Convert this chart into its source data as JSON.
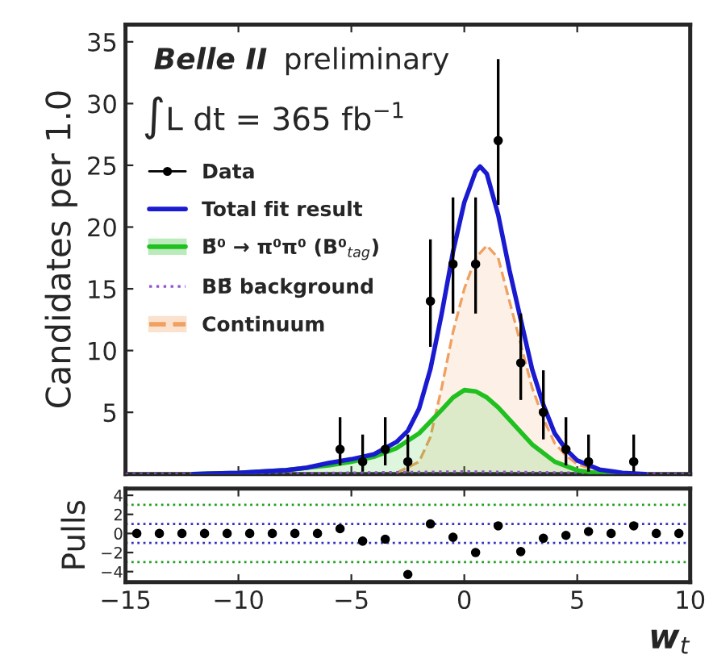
{
  "chart_data": [
    {
      "type": "line",
      "ylabel": "Candidates per 1.0",
      "xlim": [
        -15,
        10
      ],
      "xticks": [
        -15,
        -10,
        -5,
        0,
        5,
        10
      ],
      "ylim": [
        0,
        36.4
      ],
      "yticks": [
        5,
        10,
        15,
        20,
        25,
        30,
        35
      ],
      "tick_labels": "y",
      "grid": false,
      "legend": "left",
      "annotations": [
        "Belle II",
        "preliminary",
        "∫L dt = 365 fb$^{−1}$"
      ],
      "series": [
        {
          "name": "Continuum",
          "type": "area",
          "color": "#f0a060",
          "line_style": "dashed",
          "x": [
            -3,
            -2,
            -1.5,
            -1,
            -0.5,
            0,
            0.5,
            1,
            1.5,
            2,
            2.5,
            3,
            3.5,
            4,
            4.5,
            5,
            6,
            7
          ],
          "values": [
            0.1,
            1,
            3,
            7,
            11.5,
            15,
            17.5,
            18.5,
            17.5,
            14,
            10.5,
            7,
            4.5,
            2.5,
            1.5,
            0.8,
            0.2,
            0
          ]
        },
        {
          "name": "BB̄ background",
          "type": "line",
          "color": "#9050d0",
          "line_style": "dotted",
          "x": [
            -15,
            -10,
            -5,
            0,
            5,
            10
          ],
          "values": [
            0,
            0,
            0.1,
            0.2,
            0.1,
            0
          ]
        },
        {
          "name": "B̄⁰ → π⁰π⁰ (B⁰$_{tag}$)",
          "type": "area",
          "color": "#20c020",
          "line_style": "solid",
          "x": [
            -12,
            -10,
            -8,
            -7,
            -6,
            -5,
            -4,
            -3,
            -2,
            -1,
            -0.5,
            0,
            0.5,
            1,
            1.5,
            2,
            2.5,
            3,
            4,
            5,
            6,
            7
          ],
          "values": [
            0,
            0.1,
            0.3,
            0.5,
            0.7,
            1.0,
            1.4,
            2.1,
            3.3,
            5.2,
            6.2,
            6.8,
            6.7,
            6.2,
            5.4,
            4.4,
            3.4,
            2.4,
            1.0,
            0.3,
            0.05,
            0
          ]
        },
        {
          "name": "Total fit result",
          "type": "line",
          "color": "#1a1ad0",
          "line_style": "solid",
          "x": [
            -12,
            -10,
            -8,
            -7,
            -6,
            -5,
            -4,
            -3,
            -2.5,
            -2,
            -1.5,
            -1,
            -0.5,
            0,
            0.5,
            0.7,
            1,
            1.5,
            2,
            2.5,
            3,
            3.5,
            4,
            4.5,
            5,
            6,
            7,
            8
          ],
          "values": [
            0,
            0.1,
            0.3,
            0.5,
            0.9,
            1.2,
            1.6,
            2.6,
            3.5,
            5.3,
            8.5,
            13,
            18,
            22,
            24.5,
            24.9,
            24.3,
            21,
            16.5,
            12.5,
            8.5,
            5.6,
            3.3,
            2,
            1.1,
            0.35,
            0.1,
            0
          ]
        },
        {
          "name": "Data",
          "type": "scatter",
          "color": "#000000",
          "marker": "circle",
          "x": [
            -5.5,
            -4.5,
            -3.5,
            -2.5,
            -1.5,
            -0.5,
            0.5,
            1.5,
            2.5,
            3.5,
            4.5,
            5.5,
            7.5
          ],
          "values": [
            2,
            1,
            2,
            1,
            14,
            17,
            17,
            27,
            9,
            5,
            2,
            1,
            1
          ],
          "errors": [
            [
              0.7,
              4.6
            ],
            [
              0.2,
              3.2
            ],
            [
              0.7,
              4.6
            ],
            [
              0.2,
              3.2
            ],
            [
              10.3,
              19
            ],
            [
              13,
              22.4
            ],
            [
              13,
              22.4
            ],
            [
              21.8,
              33.6
            ],
            [
              6,
              13
            ],
            [
              2.8,
              8.4
            ],
            [
              0.7,
              4.6
            ],
            [
              0.2,
              3.2
            ],
            [
              0.2,
              3.2
            ]
          ]
        }
      ]
    },
    {
      "type": "scatter",
      "ylabel": "Pulls",
      "xlabel": "w$_{t}$",
      "xlim": [
        -15,
        10
      ],
      "xticks": [
        {
          "value": -15,
          "label": "−15"
        },
        {
          "value": -10,
          "label": "−10"
        },
        {
          "value": -5,
          "label": "−5"
        },
        0,
        5,
        10
      ],
      "ylim": [
        -5.1,
        4.7
      ],
      "yticks": [
        {
          "value": -4,
          "label": "−4"
        },
        {
          "value": -2,
          "label": "−2"
        },
        0,
        2,
        4
      ],
      "grid": false,
      "ref_lines": [
        {
          "axis": "y",
          "value": 3,
          "color": "#20a020",
          "line_style": "dotted"
        },
        {
          "axis": "y",
          "value": 1,
          "color": "#3030c0",
          "line_style": "dotted"
        },
        {
          "axis": "y",
          "value": -1,
          "color": "#3030c0",
          "line_style": "dotted"
        },
        {
          "axis": "y",
          "value": -3,
          "color": "#20a020",
          "line_style": "dotted"
        }
      ],
      "series": [
        {
          "color": "#000000",
          "marker": "circle",
          "x": [
            -14.5,
            -13.5,
            -12.5,
            -11.5,
            -10.5,
            -9.5,
            -8.5,
            -7.5,
            -6.5,
            -5.5,
            -4.5,
            -3.5,
            -2.5,
            -1.5,
            -0.5,
            0.5,
            1.5,
            2.5,
            3.5,
            4.5,
            5.5,
            6.5,
            7.5,
            8.5,
            9.5
          ],
          "values": [
            0,
            0,
            0,
            0,
            0,
            0,
            0,
            0,
            0,
            0.5,
            -0.8,
            -0.6,
            -4.3,
            1.0,
            -0.4,
            -2.0,
            0.8,
            -1.9,
            -0.5,
            -0.2,
            0.2,
            0,
            0.8,
            0,
            0
          ]
        }
      ]
    }
  ]
}
